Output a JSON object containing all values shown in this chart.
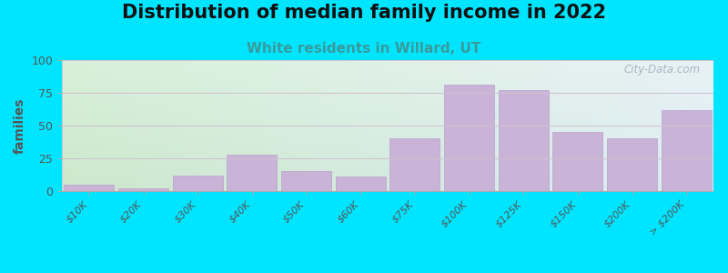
{
  "title": "Distribution of median family income in 2022",
  "subtitle": "White residents in Willard, UT",
  "ylabel": "families",
  "categories": [
    "$10K",
    "$20K",
    "$30K",
    "$40K",
    "$50K",
    "$60K",
    "$75K",
    "$100K",
    "$125K",
    "$150K",
    "$200K",
    "> $200K"
  ],
  "values": [
    5,
    2,
    12,
    28,
    15,
    11,
    40,
    81,
    77,
    45,
    40,
    62
  ],
  "bar_color": "#c9b4d8",
  "bar_edge_color": "#b8a0cc",
  "background_outer": "#00e5ff",
  "grid_color": "#d0c0d0",
  "ylim": [
    0,
    100
  ],
  "yticks": [
    0,
    25,
    50,
    75,
    100
  ],
  "title_fontsize": 15,
  "subtitle_fontsize": 11,
  "subtitle_color": "#3a9a9a",
  "ylabel_fontsize": 10,
  "watermark_text": "City-Data.com",
  "watermark_color": "#a0aabb",
  "grad_topleft": "#d8f0d8",
  "grad_topright": "#e8f0f4",
  "grad_bottomleft": "#c8ecc8",
  "grad_bottomright": "#ddeef4"
}
